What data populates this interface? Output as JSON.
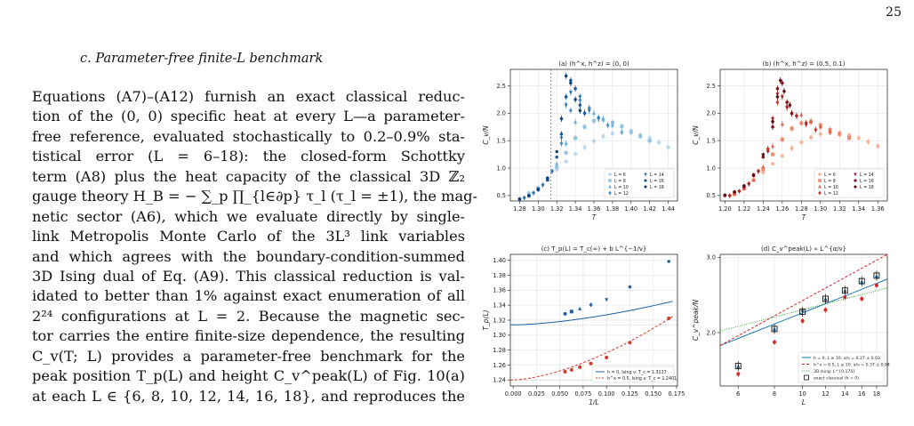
{
  "page": {
    "number": "25"
  },
  "section": {
    "title": "c.   Parameter-free finite-L benchmark"
  },
  "paragraph": {
    "lines": [
      "Equations (A7)–(A12) furnish an exact classical reduc-",
      "tion of the (0, 0) specific heat at every L—a parameter-",
      "free reference, evaluated stochastically to 0.2–0.9% sta-",
      "tistical error (L = 6–18): the closed-form Schottky",
      "term (A8) plus the heat capacity of the classical 3D ℤ₂",
      "gauge theory H_B = − ∑_p ∏_{l∈∂p} τ_l (τ_l = ±1), the mag-",
      "netic sector (A6), which we evaluate directly by single-",
      "link Metropolis Monte Carlo of the 3L³ link variables",
      "and which agrees with the boundary-condition-summed",
      "3D Ising dual of Eq. (A9). This classical reduction is val-",
      "idated to better than 1% against exact enumeration of all",
      "2²⁴ configurations at L = 2. Because the magnetic sec-",
      "tor carries the entire finite-size dependence, the resulting",
      "C_v(T; L) provides a parameter-free benchmark for the",
      "peak position T_p(L) and height C_v^peak(L) of Fig. 10(a)",
      "at each L ∈ {6, 8, 10, 12, 14, 16, 18}, and reproduces the"
    ]
  },
  "figure": {
    "panels": [
      {
        "title": "(a) (h^x, h^z) = (0, 0)",
        "xlabel": "T",
        "ylabel": "C_v/N",
        "chart_data": {
          "type": "scatter",
          "xlim": [
            1.27,
            1.45
          ],
          "ylim": [
            0.4,
            2.8
          ],
          "xticks": [
            "1.28",
            "1.30",
            "1.32",
            "1.34",
            "1.36",
            "1.38",
            "1.40",
            "1.42",
            "1.44"
          ],
          "yticks": [
            "0.5",
            "1.0",
            "1.5",
            "2.0",
            "2.5"
          ],
          "legend": [
            "L = 6",
            "L = 8",
            "L = 10",
            "L = 12",
            "L = 14",
            "L = 16",
            "L = 18"
          ],
          "series": [
            {
              "name": "L = 6",
              "color": "#b9d6ec",
              "x": [
                1.29,
                1.3,
                1.31,
                1.32,
                1.33,
                1.34,
                1.35,
                1.36,
                1.37,
                1.38,
                1.39,
                1.4,
                1.41,
                1.42,
                1.43,
                1.44
              ],
              "y": [
                0.55,
                0.65,
                0.8,
                0.97,
                1.12,
                1.26,
                1.38,
                1.49,
                1.58,
                1.63,
                1.65,
                1.64,
                1.6,
                1.55,
                1.47,
                1.38
              ]
            },
            {
              "name": "L = 8",
              "color": "#94c2e0",
              "x": [
                1.29,
                1.3,
                1.31,
                1.32,
                1.33,
                1.34,
                1.35,
                1.36,
                1.37,
                1.38,
                1.39,
                1.4,
                1.41,
                1.42
              ],
              "y": [
                0.52,
                0.63,
                0.8,
                1.02,
                1.28,
                1.55,
                1.75,
                1.86,
                1.88,
                1.83,
                1.76,
                1.67,
                1.58,
                1.5
              ]
            },
            {
              "name": "L = 10",
              "color": "#6aa8d4",
              "x": [
                1.29,
                1.3,
                1.31,
                1.32,
                1.33,
                1.34,
                1.35,
                1.36,
                1.37,
                1.38,
                1.39
              ],
              "y": [
                0.5,
                0.62,
                0.8,
                1.08,
                1.45,
                1.84,
                2.02,
                2.0,
                1.9,
                1.78,
                1.66
              ]
            },
            {
              "name": "L = 12",
              "color": "#4a8fc6",
              "x": [
                1.285,
                1.295,
                1.305,
                1.315,
                1.325,
                1.335,
                1.345,
                1.355,
                1.365,
                1.375
              ],
              "y": [
                0.46,
                0.55,
                0.7,
                0.95,
                1.45,
                2.05,
                2.24,
                2.1,
                1.92,
                1.78
              ]
            },
            {
              "name": "L = 14",
              "color": "#2f72b3",
              "x": [
                1.285,
                1.295,
                1.305,
                1.315,
                1.325,
                1.33,
                1.335,
                1.345,
                1.355,
                1.365
              ],
              "y": [
                0.45,
                0.54,
                0.68,
                0.93,
                1.55,
                2.15,
                2.38,
                2.3,
                2.05,
                1.9
              ]
            },
            {
              "name": "L = 16",
              "color": "#1b5a9c",
              "x": [
                1.28,
                1.29,
                1.3,
                1.31,
                1.32,
                1.325,
                1.33,
                1.335,
                1.34,
                1.345,
                1.35
              ],
              "y": [
                0.43,
                0.49,
                0.6,
                0.78,
                1.2,
                1.62,
                2.3,
                2.6,
                2.45,
                2.15,
                2.0
              ]
            },
            {
              "name": "L = 18",
              "color": "#0b3d78",
              "x": [
                1.28,
                1.29,
                1.3,
                1.31,
                1.32,
                1.325,
                1.33,
                1.335,
                1.34,
                1.345
              ],
              "y": [
                0.44,
                0.5,
                0.62,
                0.82,
                1.3,
                1.9,
                2.68,
                2.55,
                2.25,
                2.05
              ]
            }
          ],
          "vline": 1.3137
        }
      },
      {
        "title": "(b) (h^x, h^z) = (0.5, 0.1)",
        "xlabel": "T",
        "ylabel": "C_v/N",
        "chart_data": {
          "type": "scatter",
          "xlim": [
            1.195,
            1.37
          ],
          "ylim": [
            0.4,
            2.8
          ],
          "xticks": [
            "1.20",
            "1.22",
            "1.24",
            "1.26",
            "1.28",
            "1.30",
            "1.32",
            "1.34",
            "1.36"
          ],
          "yticks": [
            "0.5",
            "1.0",
            "1.5",
            "2.0",
            "2.5"
          ],
          "legend": [
            "L = 6",
            "L = 8",
            "L = 10",
            "L = 12",
            "L = 14",
            "L = 16",
            "L = 18"
          ],
          "series": [
            {
              "name": "L = 6",
              "color": "#f7b29a",
              "x": [
                1.21,
                1.22,
                1.23,
                1.24,
                1.25,
                1.26,
                1.27,
                1.28,
                1.29,
                1.3,
                1.31,
                1.32,
                1.33,
                1.34,
                1.35,
                1.36
              ],
              "y": [
                0.52,
                0.62,
                0.78,
                0.92,
                1.08,
                1.22,
                1.36,
                1.47,
                1.56,
                1.62,
                1.65,
                1.64,
                1.6,
                1.55,
                1.48,
                1.4
              ]
            },
            {
              "name": "L = 8",
              "color": "#f08a6e",
              "x": [
                1.21,
                1.22,
                1.23,
                1.24,
                1.25,
                1.26,
                1.27,
                1.28,
                1.29,
                1.3,
                1.31,
                1.32,
                1.33
              ],
              "y": [
                0.53,
                0.63,
                0.78,
                0.98,
                1.25,
                1.52,
                1.72,
                1.82,
                1.84,
                1.78,
                1.7,
                1.62,
                1.55
              ]
            },
            {
              "name": "L = 10",
              "color": "#e05f48",
              "x": [
                1.21,
                1.22,
                1.23,
                1.24,
                1.25,
                1.26,
                1.27,
                1.28,
                1.29,
                1.3,
                1.31
              ],
              "y": [
                0.52,
                0.62,
                0.78,
                1.02,
                1.4,
                1.8,
                2.0,
                1.97,
                1.86,
                1.75,
                1.66
              ]
            },
            {
              "name": "L = 12",
              "color": "#c9382e",
              "x": [
                1.205,
                1.215,
                1.225,
                1.235,
                1.245,
                1.25,
                1.255,
                1.265,
                1.275,
                1.285,
                1.295
              ],
              "y": [
                0.5,
                0.58,
                0.72,
                0.95,
                1.35,
                1.85,
                2.2,
                2.12,
                1.95,
                1.8,
                1.7
              ]
            },
            {
              "name": "L = 14",
              "color": "#a81f22",
              "x": [
                1.205,
                1.215,
                1.225,
                1.235,
                1.245,
                1.25,
                1.255,
                1.26,
                1.265,
                1.275,
                1.285
              ],
              "y": [
                0.49,
                0.57,
                0.7,
                0.93,
                1.3,
                1.9,
                2.35,
                2.3,
                2.1,
                1.95,
                1.82
              ]
            },
            {
              "name": "L = 16",
              "color": "#861219",
              "x": [
                1.2,
                1.21,
                1.22,
                1.23,
                1.24,
                1.25,
                1.255,
                1.26,
                1.265,
                1.27
              ],
              "y": [
                0.5,
                0.56,
                0.66,
                0.86,
                1.2,
                1.75,
                2.45,
                2.55,
                2.2,
                2.0
              ]
            },
            {
              "name": "L = 18",
              "color": "#5e0a12",
              "x": [
                1.2,
                1.21,
                1.22,
                1.23,
                1.24,
                1.25,
                1.255,
                1.258,
                1.262,
                1.268
              ],
              "y": [
                0.51,
                0.57,
                0.68,
                0.88,
                1.25,
                1.85,
                2.3,
                2.6,
                2.4,
                2.15
              ]
            }
          ]
        }
      },
      {
        "title": "(c) T_p(L) = T_c(∞) + b L^{−1/ν}",
        "xlabel": "1/L",
        "ylabel": "T_p(L)",
        "chart_data": {
          "type": "line",
          "xlim": [
            -0.003,
            0.176
          ],
          "ylim": [
            1.232,
            1.408
          ],
          "xticks": [
            "0.000",
            "0.025",
            "0.050",
            "0.075",
            "0.100",
            "0.125",
            "0.150",
            "0.175"
          ],
          "yticks": [
            "1.24",
            "1.26",
            "1.28",
            "1.30",
            "1.32",
            "1.34",
            "1.36",
            "1.38",
            "1.40"
          ],
          "legend": [
            "h = 0, Ising ν: T_c = 1.3137",
            "h^x = 0.5, Ising ν: T_c = 1.2401"
          ],
          "series": [
            {
              "name": "h = 0, Ising ν: T_c = 1.3137",
              "color": "#1f5f9e",
              "x": [
                0.0556,
                0.0625,
                0.0714,
                0.0833,
                0.1,
                0.125,
                0.1667
              ],
              "y": [
                1.3285,
                1.3315,
                1.3352,
                1.3405,
                1.3475,
                1.3645,
                1.3985
              ],
              "fit": {
                "Tc": 1.3137,
                "b": 0.52,
                "inv_nu": 1.587
              }
            },
            {
              "name": "h^x = 0.5, Ising ν: T_c = 1.2401",
              "color": "#d23b2b",
              "x": [
                0.0556,
                0.0625,
                0.0714,
                0.0833,
                0.1,
                0.125,
                0.1667
              ],
              "y": [
                1.251,
                1.2535,
                1.2572,
                1.262,
                1.27,
                1.29,
                1.3225
              ],
              "fit": {
                "Tc": 1.2401,
                "b": 1.4,
                "inv_nu": 1.587
              }
            }
          ]
        }
      },
      {
        "title": "(d) C_v^peak(L) ∝ L^{α/ν}",
        "xlabel": "L",
        "ylabel": "C_v^peak/N",
        "chart_data": {
          "type": "scatter",
          "xscale": "log",
          "yscale": "log",
          "xlim": [
            5.2,
            19.6
          ],
          "ylim": [
            1.5,
            3.05
          ],
          "xticks": [
            "6",
            "8",
            "10",
            "12",
            "14",
            "16",
            "18"
          ],
          "yticks": [
            "2.0",
            "3.0"
          ],
          "legend": [
            "h = 0, L ≥ 10: α/ν = 0.27 ± 0.03",
            "h^x = 0.5, L ≥ 10: α/ν = 0.37 ± 0.04",
            "3D Ising: L^{0.175}",
            "exact classical (h = 0)"
          ],
          "series": [
            {
              "name": "h = 0, L ≥ 10: α/ν = 0.27 ± 0.03",
              "color": "#1f77b4",
              "L": [
                6,
                8,
                10,
                12,
                14,
                16,
                18
              ],
              "y": [
                1.66,
                2.03,
                2.25,
                2.39,
                2.5,
                2.62,
                2.7
              ],
              "fit": {
                "A": 1.195,
                "slope": 0.27
              }
            },
            {
              "name": "h^x = 0.5, L ≥ 10: α/ν = 0.37 ± 0.04",
              "color": "#d62728",
              "L": [
                6,
                8,
                10,
                12,
                14,
                16,
                18
              ],
              "y": [
                1.6,
                1.9,
                2.13,
                2.26,
                2.42,
                2.4,
                2.58
              ],
              "fit": {
                "A": 1.014,
                "slope": 0.37
              }
            },
            {
              "name": "3D Ising: L^{0.175}",
              "color": "#2ca02c",
              "fit": {
                "A": 1.512,
                "slope": 0.175
              }
            },
            {
              "name": "exact classical (h = 0)",
              "color": "#111111",
              "L": [
                6,
                8,
                10,
                12,
                14,
                16,
                18
              ],
              "y": [
                1.67,
                2.04,
                2.24,
                2.4,
                2.51,
                2.64,
                2.72
              ]
            }
          ]
        }
      }
    ]
  }
}
